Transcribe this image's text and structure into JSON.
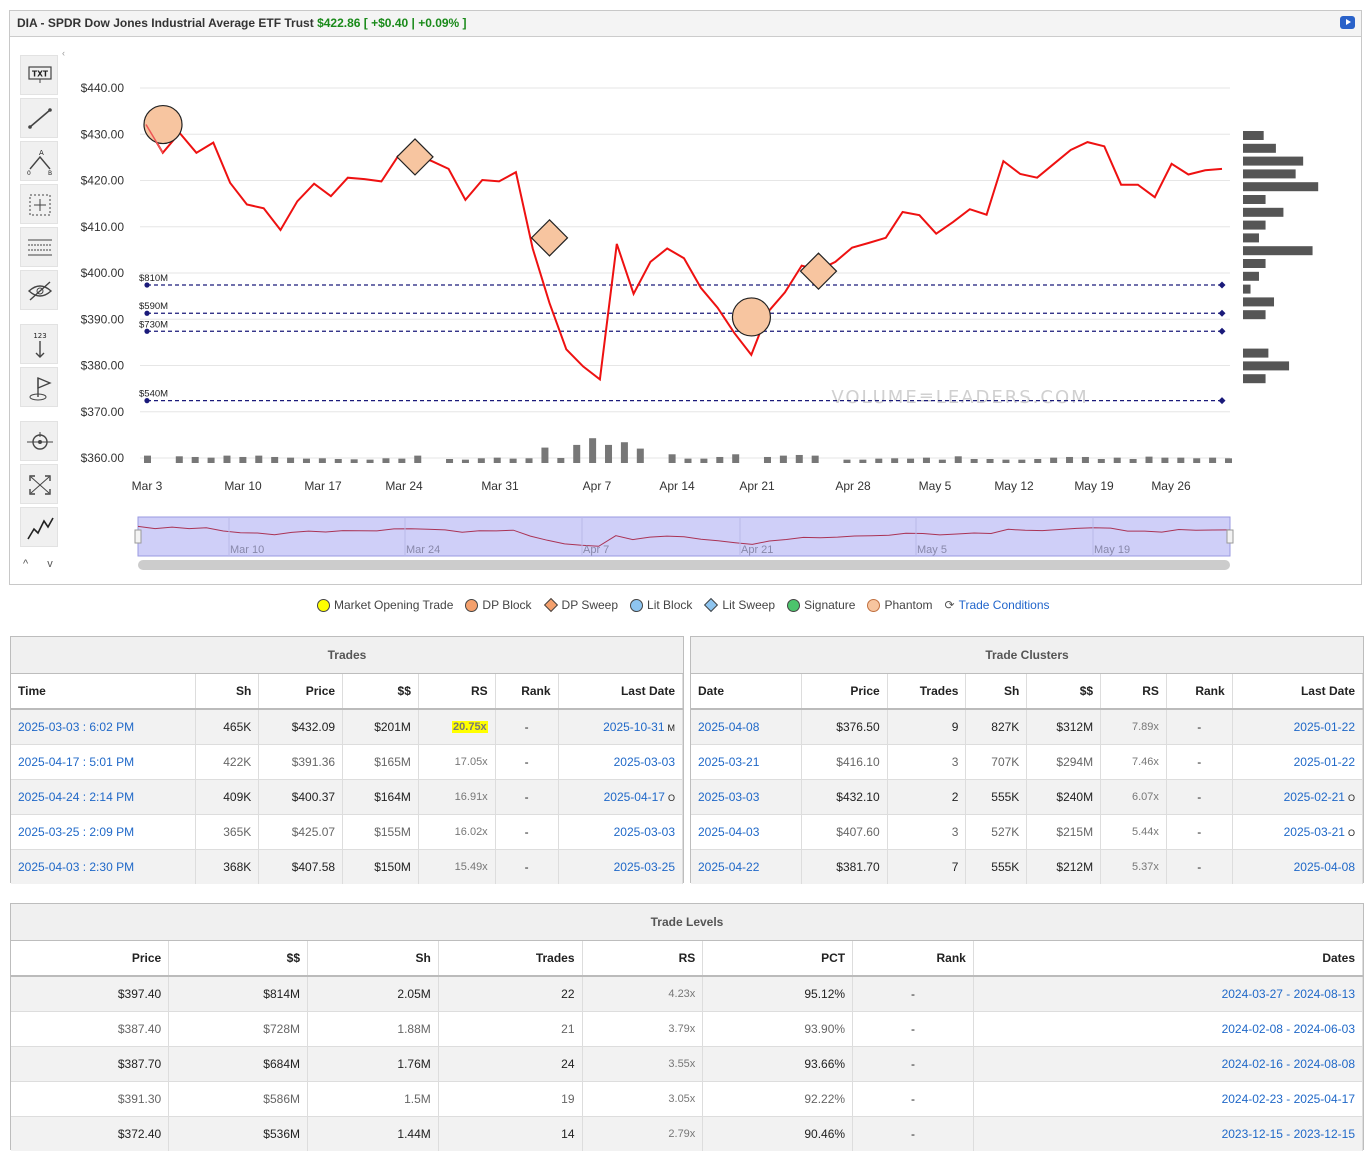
{
  "header": {
    "title": "DIA - SPDR Dow Jones Industrial Average ETF Trust",
    "price": "$422.86",
    "change": "[ +$0.40 | +0.09% ]"
  },
  "toolbar": {
    "icons": [
      "text-tool-icon",
      "line-tool-icon",
      "abcd-pattern-icon",
      "crosshair-select-icon",
      "horizontal-lines-icon",
      "hide-drawings-icon",
      "sort-numeric-icon",
      "flag-marker-icon",
      "zoom-target-icon",
      "fullscreen-icon",
      "chart-type-icon"
    ],
    "chevrons": "^ v"
  },
  "watermark": "VOLUME≡LEADERS.COM",
  "chart_data": {
    "type": "line",
    "title": "",
    "ylabel": "",
    "xlabel": "",
    "y_ticks": [
      "$440.00",
      "$430.00",
      "$420.00",
      "$410.00",
      "$400.00",
      "$390.00",
      "$380.00",
      "$370.00",
      "$360.00"
    ],
    "x_ticks": [
      "Mar 3",
      "Mar 10",
      "Mar 17",
      "Mar 24",
      "Mar 31",
      "Apr 7",
      "Apr 14",
      "Apr 21",
      "Apr 28",
      "May 5",
      "May 12",
      "May 19",
      "May 26"
    ],
    "ylim": [
      360,
      445
    ],
    "series": [
      {
        "color": "#ee1111",
        "values": [
          432.1,
          426,
          430.3,
          426,
          428.2,
          419.5,
          414.8,
          414,
          409.3,
          415.5,
          419.3,
          416.6,
          420.6,
          420.3,
          419.8,
          425.3,
          425.6,
          424.2,
          422.5,
          415.8,
          420.1,
          419.8,
          421.8,
          405.3,
          393.5,
          383.5,
          379.8,
          377,
          406.3,
          395.5,
          402.4,
          405.3,
          403.2,
          396.8,
          392.5,
          387,
          382.3,
          391.6,
          395.8,
          401.6,
          400.6,
          402.4,
          405.5,
          406.5,
          407.6,
          413.2,
          412.5,
          408.5,
          411,
          413.8,
          412.6,
          424.2,
          421.4,
          420.6,
          423.6,
          426.6,
          428.3,
          427.4,
          419.1,
          419.1,
          416.4,
          423.6,
          421.3,
          422.2,
          422.5
        ]
      }
    ],
    "volume_bars": [
      2.2,
      0,
      2,
      1.8,
      1.6,
      2.2,
      1.8,
      2.2,
      1.8,
      1.6,
      1.3,
      1.4,
      1.2,
      1.1,
      1,
      1.4,
      1.3,
      2.2,
      0,
      1.2,
      1,
      1.4,
      1.6,
      1.3,
      1.4,
      4.6,
      1.5,
      5.4,
      7.4,
      5.4,
      6.2,
      4.3,
      0,
      2.6,
      1.3,
      1.3,
      1.8,
      2.6,
      0,
      1.8,
      2.2,
      2.4,
      2.2,
      0,
      1,
      1,
      1.3,
      1.4,
      1.3,
      1.6,
      1,
      2,
      1.2,
      1.2,
      1,
      1,
      1.2,
      1.6,
      1.8,
      1.8,
      1.2,
      1.6,
      1.2,
      1.9,
      1.6,
      1.6,
      1.4,
      1.6,
      1.4
    ],
    "levels": [
      {
        "label": "$810M",
        "price": 397.4
      },
      {
        "label": "$590M",
        "price": 391.3
      },
      {
        "label": "$730M",
        "price": 387.4
      },
      {
        "label": "$540M",
        "price": 372.4
      }
    ],
    "markers": [
      {
        "type": "dp-block",
        "index": 0,
        "price": 432.1
      },
      {
        "type": "dp-sweep",
        "index": 16,
        "price": 425.1
      },
      {
        "type": "dp-sweep",
        "index": 24,
        "price": 407.6
      },
      {
        "type": "dp-block",
        "index": 35,
        "price": 390.5
      },
      {
        "type": "dp-sweep",
        "index": 40,
        "price": 400.4
      }
    ],
    "volume_profile": [
      2.2,
      3.5,
      6.4,
      5.6,
      8,
      2.4,
      4.3,
      2.4,
      1.7,
      7.4,
      2.4,
      1.7,
      0.8,
      3.3,
      2.4,
      0,
      0,
      2.7,
      4.9,
      2.4
    ],
    "navigator_labels": [
      "Mar 10",
      "Mar 24",
      "Apr 7",
      "Apr 21",
      "May 5",
      "May 19"
    ]
  },
  "legend": [
    {
      "label": "Market Opening Trade",
      "shape": "dot",
      "color": "#ffff00"
    },
    {
      "label": "DP Block",
      "shape": "dot",
      "color": "#f4a06c"
    },
    {
      "label": "DP Sweep",
      "shape": "diamond",
      "color": "#f4a06c"
    },
    {
      "label": "Lit Block",
      "shape": "dot",
      "color": "#8ec5f0"
    },
    {
      "label": "Lit Sweep",
      "shape": "diamond",
      "color": "#8ec5f0"
    },
    {
      "label": "Signature",
      "shape": "dot",
      "color": "#4cc46c"
    },
    {
      "label": "Phantom",
      "shape": "phantom",
      "color": "#f7c59f"
    },
    {
      "label": "Trade Conditions",
      "shape": "link",
      "color": "#2266cc"
    }
  ],
  "trades": {
    "title": "Trades",
    "columns": [
      "Time",
      "Sh",
      "Price",
      "$$",
      "RS",
      "Rank",
      "Last Date"
    ],
    "rows": [
      {
        "time": "2025-03-03 : 6:02 PM",
        "sh": "465K",
        "price": "$432.09",
        "amt": "$201M",
        "rs": "20.75x",
        "rank": "-",
        "last": "2025-10-31",
        "mark": "M"
      },
      {
        "time": "2025-04-17 : 5:01 PM",
        "sh": "422K",
        "price": "$391.36",
        "amt": "$165M",
        "rs": "17.05x",
        "rank": "-",
        "last": "2025-03-03",
        "mark": ""
      },
      {
        "time": "2025-04-24 : 2:14 PM",
        "sh": "409K",
        "price": "$400.37",
        "amt": "$164M",
        "rs": "16.91x",
        "rank": "-",
        "last": "2025-04-17",
        "mark": "O"
      },
      {
        "time": "2025-03-25 : 2:09 PM",
        "sh": "365K",
        "price": "$425.07",
        "amt": "$155M",
        "rs": "16.02x",
        "rank": "-",
        "last": "2025-03-03",
        "mark": ""
      },
      {
        "time": "2025-04-03 : 2:30 PM",
        "sh": "368K",
        "price": "$407.58",
        "amt": "$150M",
        "rs": "15.49x",
        "rank": "-",
        "last": "2025-03-25",
        "mark": ""
      }
    ]
  },
  "clusters": {
    "title": "Trade Clusters",
    "columns": [
      "Date",
      "Price",
      "Trades",
      "Sh",
      "$$",
      "RS",
      "Rank",
      "Last Date"
    ],
    "rows": [
      {
        "date": "2025-04-08",
        "price": "$376.50",
        "trades": "9",
        "sh": "827K",
        "amt": "$312M",
        "rs": "7.89x",
        "rank": "-",
        "last": "2025-01-22",
        "mark": ""
      },
      {
        "date": "2025-03-21",
        "price": "$416.10",
        "trades": "3",
        "sh": "707K",
        "amt": "$294M",
        "rs": "7.46x",
        "rank": "-",
        "last": "2025-01-22",
        "mark": ""
      },
      {
        "date": "2025-03-03",
        "price": "$432.10",
        "trades": "2",
        "sh": "555K",
        "amt": "$240M",
        "rs": "6.07x",
        "rank": "-",
        "last": "2025-02-21",
        "mark": "O"
      },
      {
        "date": "2025-04-03",
        "price": "$407.60",
        "trades": "3",
        "sh": "527K",
        "amt": "$215M",
        "rs": "5.44x",
        "rank": "-",
        "last": "2025-03-21",
        "mark": "O"
      },
      {
        "date": "2025-04-22",
        "price": "$381.70",
        "trades": "7",
        "sh": "555K",
        "amt": "$212M",
        "rs": "5.37x",
        "rank": "-",
        "last": "2025-04-08",
        "mark": ""
      }
    ]
  },
  "levels": {
    "title": "Trade Levels",
    "columns": [
      "Price",
      "$$",
      "Sh",
      "Trades",
      "RS",
      "PCT",
      "Rank",
      "Dates"
    ],
    "rows": [
      {
        "price": "$397.40",
        "amt": "$814M",
        "sh": "2.05M",
        "trades": "22",
        "rs": "4.23x",
        "pct": "95.12%",
        "rank": "-",
        "dates": "2024-03-27 - 2024-08-13"
      },
      {
        "price": "$387.40",
        "amt": "$728M",
        "sh": "1.88M",
        "trades": "21",
        "rs": "3.79x",
        "pct": "93.90%",
        "rank": "-",
        "dates": "2024-02-08 - 2024-06-03"
      },
      {
        "price": "$387.70",
        "amt": "$684M",
        "sh": "1.76M",
        "trades": "24",
        "rs": "3.55x",
        "pct": "93.66%",
        "rank": "-",
        "dates": "2024-02-16 - 2024-08-08"
      },
      {
        "price": "$391.30",
        "amt": "$586M",
        "sh": "1.5M",
        "trades": "19",
        "rs": "3.05x",
        "pct": "92.22%",
        "rank": "-",
        "dates": "2024-02-23 - 2025-04-17"
      },
      {
        "price": "$372.40",
        "amt": "$536M",
        "sh": "1.44M",
        "trades": "14",
        "rs": "2.79x",
        "pct": "90.46%",
        "rank": "-",
        "dates": "2023-12-15 - 2023-12-15"
      }
    ]
  }
}
